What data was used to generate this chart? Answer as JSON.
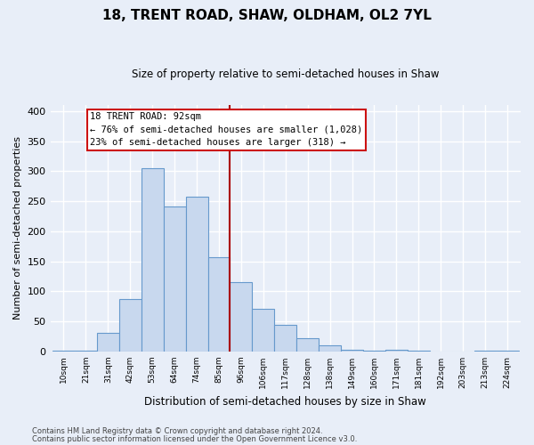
{
  "title": "18, TRENT ROAD, SHAW, OLDHAM, OL2 7YL",
  "subtitle": "Size of property relative to semi-detached houses in Shaw",
  "xlabel": "Distribution of semi-detached houses by size in Shaw",
  "ylabel": "Number of semi-detached properties",
  "footnote1": "Contains HM Land Registry data © Crown copyright and database right 2024.",
  "footnote2": "Contains public sector information licensed under the Open Government Licence v3.0.",
  "bar_labels": [
    "10sqm",
    "21sqm",
    "31sqm",
    "42sqm",
    "53sqm",
    "64sqm",
    "74sqm",
    "85sqm",
    "96sqm",
    "106sqm",
    "117sqm",
    "128sqm",
    "138sqm",
    "149sqm",
    "160sqm",
    "171sqm",
    "181sqm",
    "192sqm",
    "203sqm",
    "213sqm",
    "224sqm"
  ],
  "bar_values": [
    2,
    2,
    31,
    87,
    305,
    242,
    258,
    157,
    116,
    71,
    45,
    22,
    10,
    3,
    2,
    3,
    2,
    0,
    0,
    2,
    2
  ],
  "bar_color": "#c8d8ee",
  "bar_edge_color": "#6699cc",
  "annotation_title": "18 TRENT ROAD: 92sqm",
  "annotation_line1": "← 76% of semi-detached houses are smaller (1,028)",
  "annotation_line2": "23% of semi-detached houses are larger (318) →",
  "annotation_box_facecolor": "#ffffff",
  "annotation_box_edgecolor": "#cc1111",
  "vline_color": "#aa0000",
  "vline_x_index": 7.5,
  "ylim": [
    0,
    410
  ],
  "yticks": [
    0,
    50,
    100,
    150,
    200,
    250,
    300,
    350,
    400
  ],
  "background_color": "#e8eef8",
  "grid_color": "#ffffff",
  "figwidth": 6.0,
  "figheight": 5.0
}
